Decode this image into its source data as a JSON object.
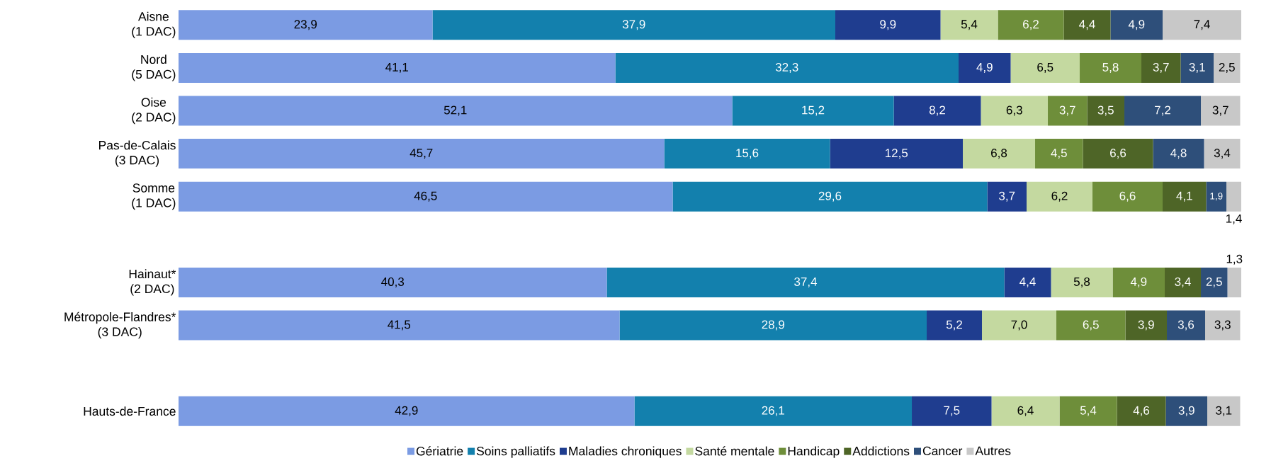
{
  "chart_data": {
    "type": "bar",
    "orientation": "horizontal",
    "stacked": true,
    "tick_labels": "y",
    "legend": "bottom",
    "categories": [
      "Aisne\n(1 DAC)",
      "Nord\n(5 DAC)",
      "Oise\n(2 DAC)",
      "Pas-de-Calais\n(3 DAC)",
      "Somme\n(1 DAC)",
      null,
      "Hainaut*\n(2 DAC)",
      "Métropole-Flandres*\n(3 DAC)",
      null,
      "Hauts-de-France"
    ],
    "xlim": [
      0,
      100
    ],
    "series": [
      {
        "name": "Gériatrie",
        "color": "#7b9be3",
        "values": [
          23.9,
          41.1,
          52.1,
          45.7,
          46.5,
          null,
          40.3,
          41.5,
          null,
          42.9
        ],
        "value_labels": [
          "23,9",
          "41,1",
          "52,1",
          "45,7",
          "46,5",
          null,
          "40,3",
          "41,5",
          null,
          "42,9"
        ]
      },
      {
        "name": "Soins palliatifs",
        "color": "#1380ad",
        "values": [
          37.9,
          32.3,
          15.2,
          15.6,
          29.6,
          null,
          37.4,
          28.9,
          null,
          26.1
        ],
        "value_labels": [
          "37,9",
          "32,3",
          "15,2",
          "15,6",
          "29,6",
          null,
          "37,4",
          "28,9",
          null,
          "26,1"
        ]
      },
      {
        "name": "Maladies chroniques",
        "color": "#1f3d8f",
        "values": [
          9.9,
          4.9,
          8.2,
          12.5,
          3.7,
          null,
          4.4,
          5.2,
          null,
          7.5
        ],
        "value_labels": [
          "9,9",
          "4,9",
          "8,2",
          "12,5",
          "3,7",
          null,
          "4,4",
          "5,2",
          null,
          "7,5"
        ]
      },
      {
        "name": "Santé mentale",
        "color": "#c4d9a0",
        "values": [
          5.4,
          6.5,
          6.3,
          6.8,
          6.2,
          null,
          5.8,
          7.0,
          null,
          6.4
        ],
        "value_labels": [
          "5,4",
          "6,5",
          "6,3",
          "6,8",
          "6,2",
          null,
          "5,8",
          "7,0",
          null,
          "6,4"
        ]
      },
      {
        "name": "Handicap",
        "color": "#6e8e3a",
        "values": [
          6.2,
          5.8,
          3.7,
          4.5,
          6.6,
          null,
          4.9,
          6.5,
          null,
          5.4
        ],
        "value_labels": [
          "6,2",
          "5,8",
          "3,7",
          "4,5",
          "6,6",
          null,
          "4,9",
          "6,5",
          null,
          "5,4"
        ]
      },
      {
        "name": "Addictions",
        "color": "#4e6527",
        "values": [
          4.4,
          3.7,
          3.5,
          6.6,
          4.1,
          null,
          3.4,
          3.9,
          null,
          4.6
        ],
        "value_labels": [
          "4,4",
          "3,7",
          "3,5",
          "6,6",
          "4,1",
          null,
          "3,4",
          "3,9",
          null,
          "4,6"
        ]
      },
      {
        "name": "Cancer",
        "color": "#2e4f7a",
        "values": [
          4.9,
          3.1,
          7.2,
          4.8,
          1.9,
          null,
          2.5,
          3.6,
          null,
          3.9
        ],
        "value_labels": [
          "4,9",
          "3,1",
          "7,2",
          "4,8",
          "1,9",
          null,
          "2,5",
          "3,6",
          null,
          "3,9"
        ]
      },
      {
        "name": "Autres",
        "color": "#c8c8c8",
        "values": [
          7.4,
          2.5,
          3.7,
          3.4,
          1.4,
          null,
          1.3,
          3.3,
          null,
          3.1
        ],
        "value_labels": [
          "7,4",
          "2,5",
          "3,7",
          "3,4",
          "1,4",
          null,
          "1,3",
          "3,3",
          null,
          "3,1"
        ]
      }
    ]
  }
}
